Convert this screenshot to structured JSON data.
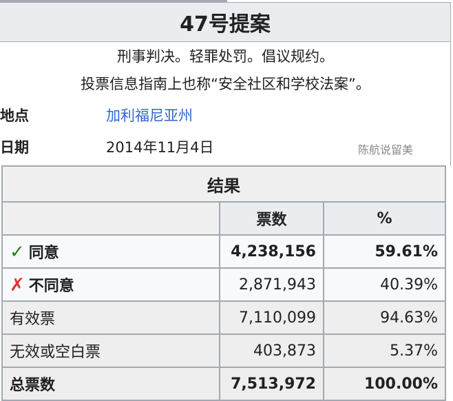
{
  "title": "47号提案",
  "subtitle1": "刑事判决。轻罪处罚。倡议规约。",
  "subtitle2": "投票信息指南上也称“安全社区和学校法案”。",
  "location_label": "地点",
  "location_value": "加利福尼亚州",
  "date_label": "日期",
  "date_value": "2014年11月4日",
  "results": {
    "caption": "结果",
    "headers": [
      "",
      "票数",
      "%"
    ],
    "rows": [
      {
        "label": "同意",
        "icon": "check-icon",
        "votes": "4,238,156",
        "pct": "59.61%"
      },
      {
        "label": "不同意",
        "icon": "x-icon",
        "votes": "2,871,943",
        "pct": "40.39%"
      },
      {
        "label": "有效票",
        "votes": "7,110,099",
        "pct": "94.63%"
      },
      {
        "label": "无效或空白票",
        "votes": "403,873",
        "pct": "5.37%"
      },
      {
        "label": "总票数",
        "votes": "7,513,972",
        "pct": "100.00%"
      }
    ]
  },
  "watermark": "陈航说留美",
  "colors": {
    "check": "#2a7d1e",
    "cross": "#dd3333",
    "link": "#3366cc"
  }
}
